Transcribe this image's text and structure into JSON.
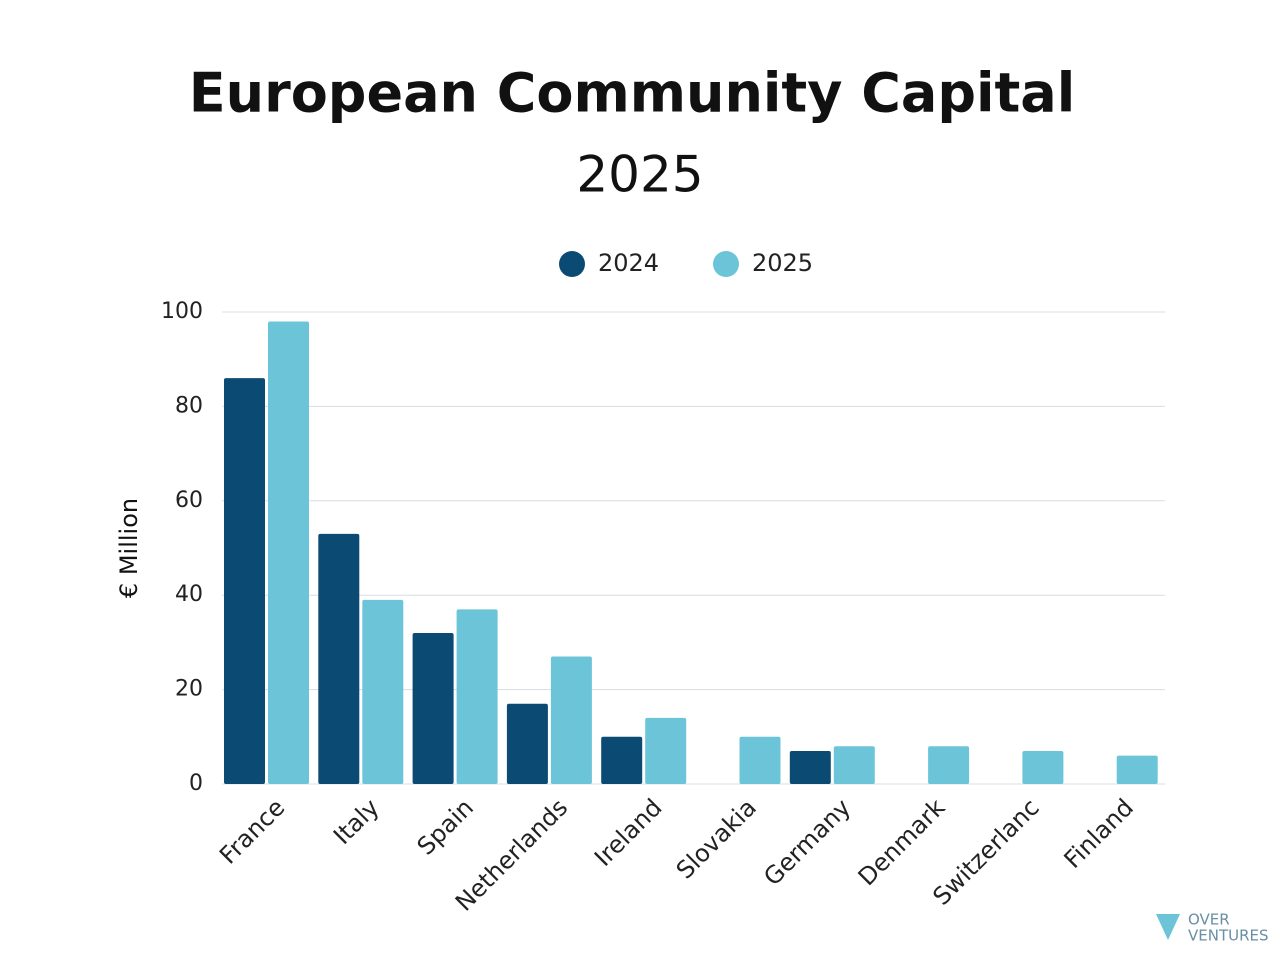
{
  "chart_data": {
    "type": "bar",
    "title": "European Community Capital",
    "subtitle": "2025",
    "y_label": "€ Million",
    "categories": [
      "France",
      "Italy",
      "Spain",
      "Netherlands",
      "Ireland",
      "Slovakia",
      "Germany",
      "Denmark",
      "Switzerlanc",
      "Finland"
    ],
    "series": [
      {
        "name": "2024",
        "color": "#0b4a73",
        "values": [
          86,
          53,
          32,
          17,
          10,
          null,
          7,
          null,
          null,
          null
        ]
      },
      {
        "name": "2025",
        "color": "#6cc4d8",
        "values": [
          98,
          39,
          37,
          27,
          14,
          10,
          8,
          8,
          7,
          6
        ]
      }
    ],
    "ylim": [
      0,
      100
    ],
    "yticks": [
      0,
      20,
      40,
      60,
      80,
      100
    ],
    "grid": true,
    "legend": "top"
  },
  "watermark": [
    "OVER",
    "VENTURES"
  ]
}
